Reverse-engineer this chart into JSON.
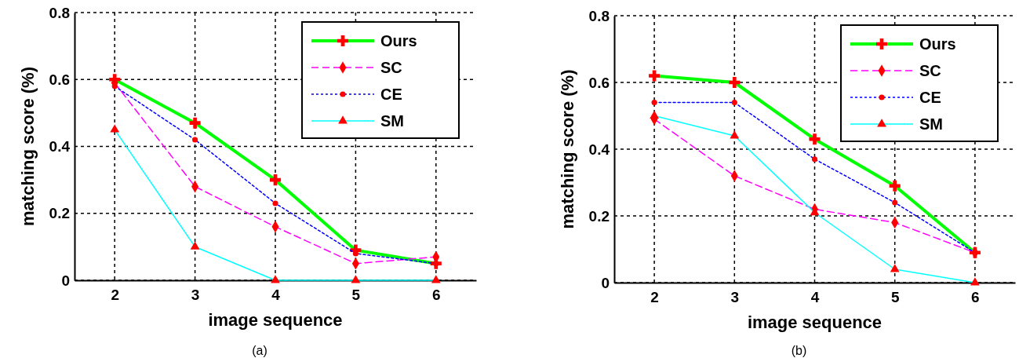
{
  "chart_data": [
    {
      "type": "line",
      "xlabel": "image sequence",
      "ylabel": "matching score (%)",
      "x": [
        2,
        3,
        4,
        5,
        6
      ],
      "xlim": [
        1.5,
        6.5
      ],
      "xticks": [
        2,
        3,
        4,
        5,
        6
      ],
      "ylim": [
        0,
        0.8
      ],
      "yticks": [
        0,
        0.2,
        0.4,
        0.6,
        0.8
      ],
      "grid": true,
      "legend": "top right",
      "annotations": [
        "(a)"
      ],
      "series": [
        {
          "name": "Ours",
          "color": "#00ff00",
          "marker": "cross",
          "line_style": "solid",
          "values": [
            0.6,
            0.47,
            0.3,
            0.09,
            0.05
          ]
        },
        {
          "name": "SC",
          "color": "#ff00ff",
          "marker": "diamond",
          "line_style": "dashed",
          "values": [
            0.59,
            0.28,
            0.16,
            0.05,
            0.07
          ]
        },
        {
          "name": "CE",
          "color": "#0000ff",
          "marker": "circle",
          "line_style": "dotted",
          "values": [
            0.58,
            0.42,
            0.23,
            0.08,
            0.05
          ]
        },
        {
          "name": "SM",
          "color": "#00ffff",
          "marker": "triangle",
          "line_style": "solid",
          "values": [
            0.45,
            0.1,
            0,
            0,
            0
          ]
        }
      ]
    },
    {
      "type": "line",
      "xlabel": "image sequence",
      "ylabel": "matching score (%)",
      "x": [
        2,
        3,
        4,
        5,
        6
      ],
      "xlim": [
        1.5,
        6.5
      ],
      "xticks": [
        2,
        3,
        4,
        5,
        6
      ],
      "ylim": [
        0,
        0.8
      ],
      "yticks": [
        0,
        0.2,
        0.4,
        0.6,
        0.8
      ],
      "grid": true,
      "legend": "top right",
      "annotations": [
        "(b)"
      ],
      "series": [
        {
          "name": "Ours",
          "color": "#00ff00",
          "marker": "cross",
          "line_style": "solid",
          "values": [
            0.62,
            0.6,
            0.43,
            0.29,
            0.09
          ]
        },
        {
          "name": "SC",
          "color": "#ff00ff",
          "marker": "diamond",
          "line_style": "dashed",
          "values": [
            0.49,
            0.32,
            0.22,
            0.18,
            0.09
          ]
        },
        {
          "name": "CE",
          "color": "#0000ff",
          "marker": "circle",
          "line_style": "dotted",
          "values": [
            0.54,
            0.54,
            0.37,
            0.24,
            0.09
          ]
        },
        {
          "name": "SM",
          "color": "#00ffff",
          "marker": "triangle",
          "line_style": "solid",
          "values": [
            0.5,
            0.44,
            0.21,
            0.04,
            0
          ]
        }
      ]
    }
  ]
}
